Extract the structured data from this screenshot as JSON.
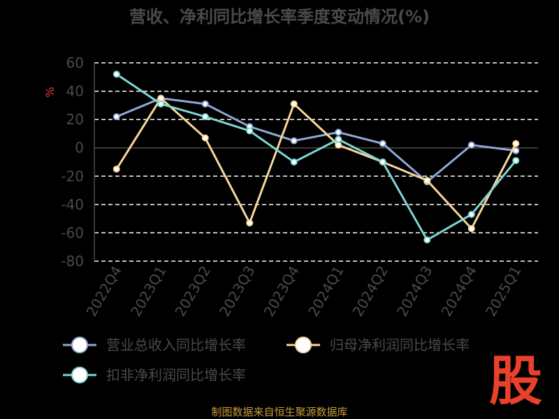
{
  "chart_data": {
    "type": "line",
    "title": "营收、净利同比增长率季度变动情况(%)",
    "ylabel": "%",
    "ylim": [
      -80,
      60
    ],
    "yticks": [
      60,
      40,
      20,
      0,
      -20,
      -40,
      -60,
      -80
    ],
    "categories": [
      "2022Q4",
      "2023Q1",
      "2023Q2",
      "2023Q3",
      "2023Q4",
      "2024Q1",
      "2024Q2",
      "2024Q3",
      "2024Q4",
      "2025Q1"
    ],
    "series": [
      {
        "name": "营业总收入同比增长率",
        "color": "#8fa9d8",
        "values": [
          22,
          35,
          31,
          15,
          5,
          11,
          3,
          -24,
          2,
          -2
        ]
      },
      {
        "name": "归母净利润同比增长率",
        "color": "#f8d79a",
        "values": [
          -15,
          35,
          7,
          -53,
          31,
          2,
          -10,
          -23,
          -57,
          3
        ]
      },
      {
        "name": "扣非净利润同比增长率",
        "color": "#7fd6d3",
        "values": [
          52,
          31,
          22,
          12,
          -10,
          6,
          -10,
          -65,
          -47,
          -9
        ]
      }
    ],
    "grid": true,
    "legend_position": "bottom"
  },
  "footer": "制图数据来自恒生聚源数据库",
  "watermark_text": "股",
  "colors": {
    "background": "#000000",
    "text": "#4a4a4a",
    "footer": "#c89b3c",
    "watermark": "#e8412c"
  }
}
